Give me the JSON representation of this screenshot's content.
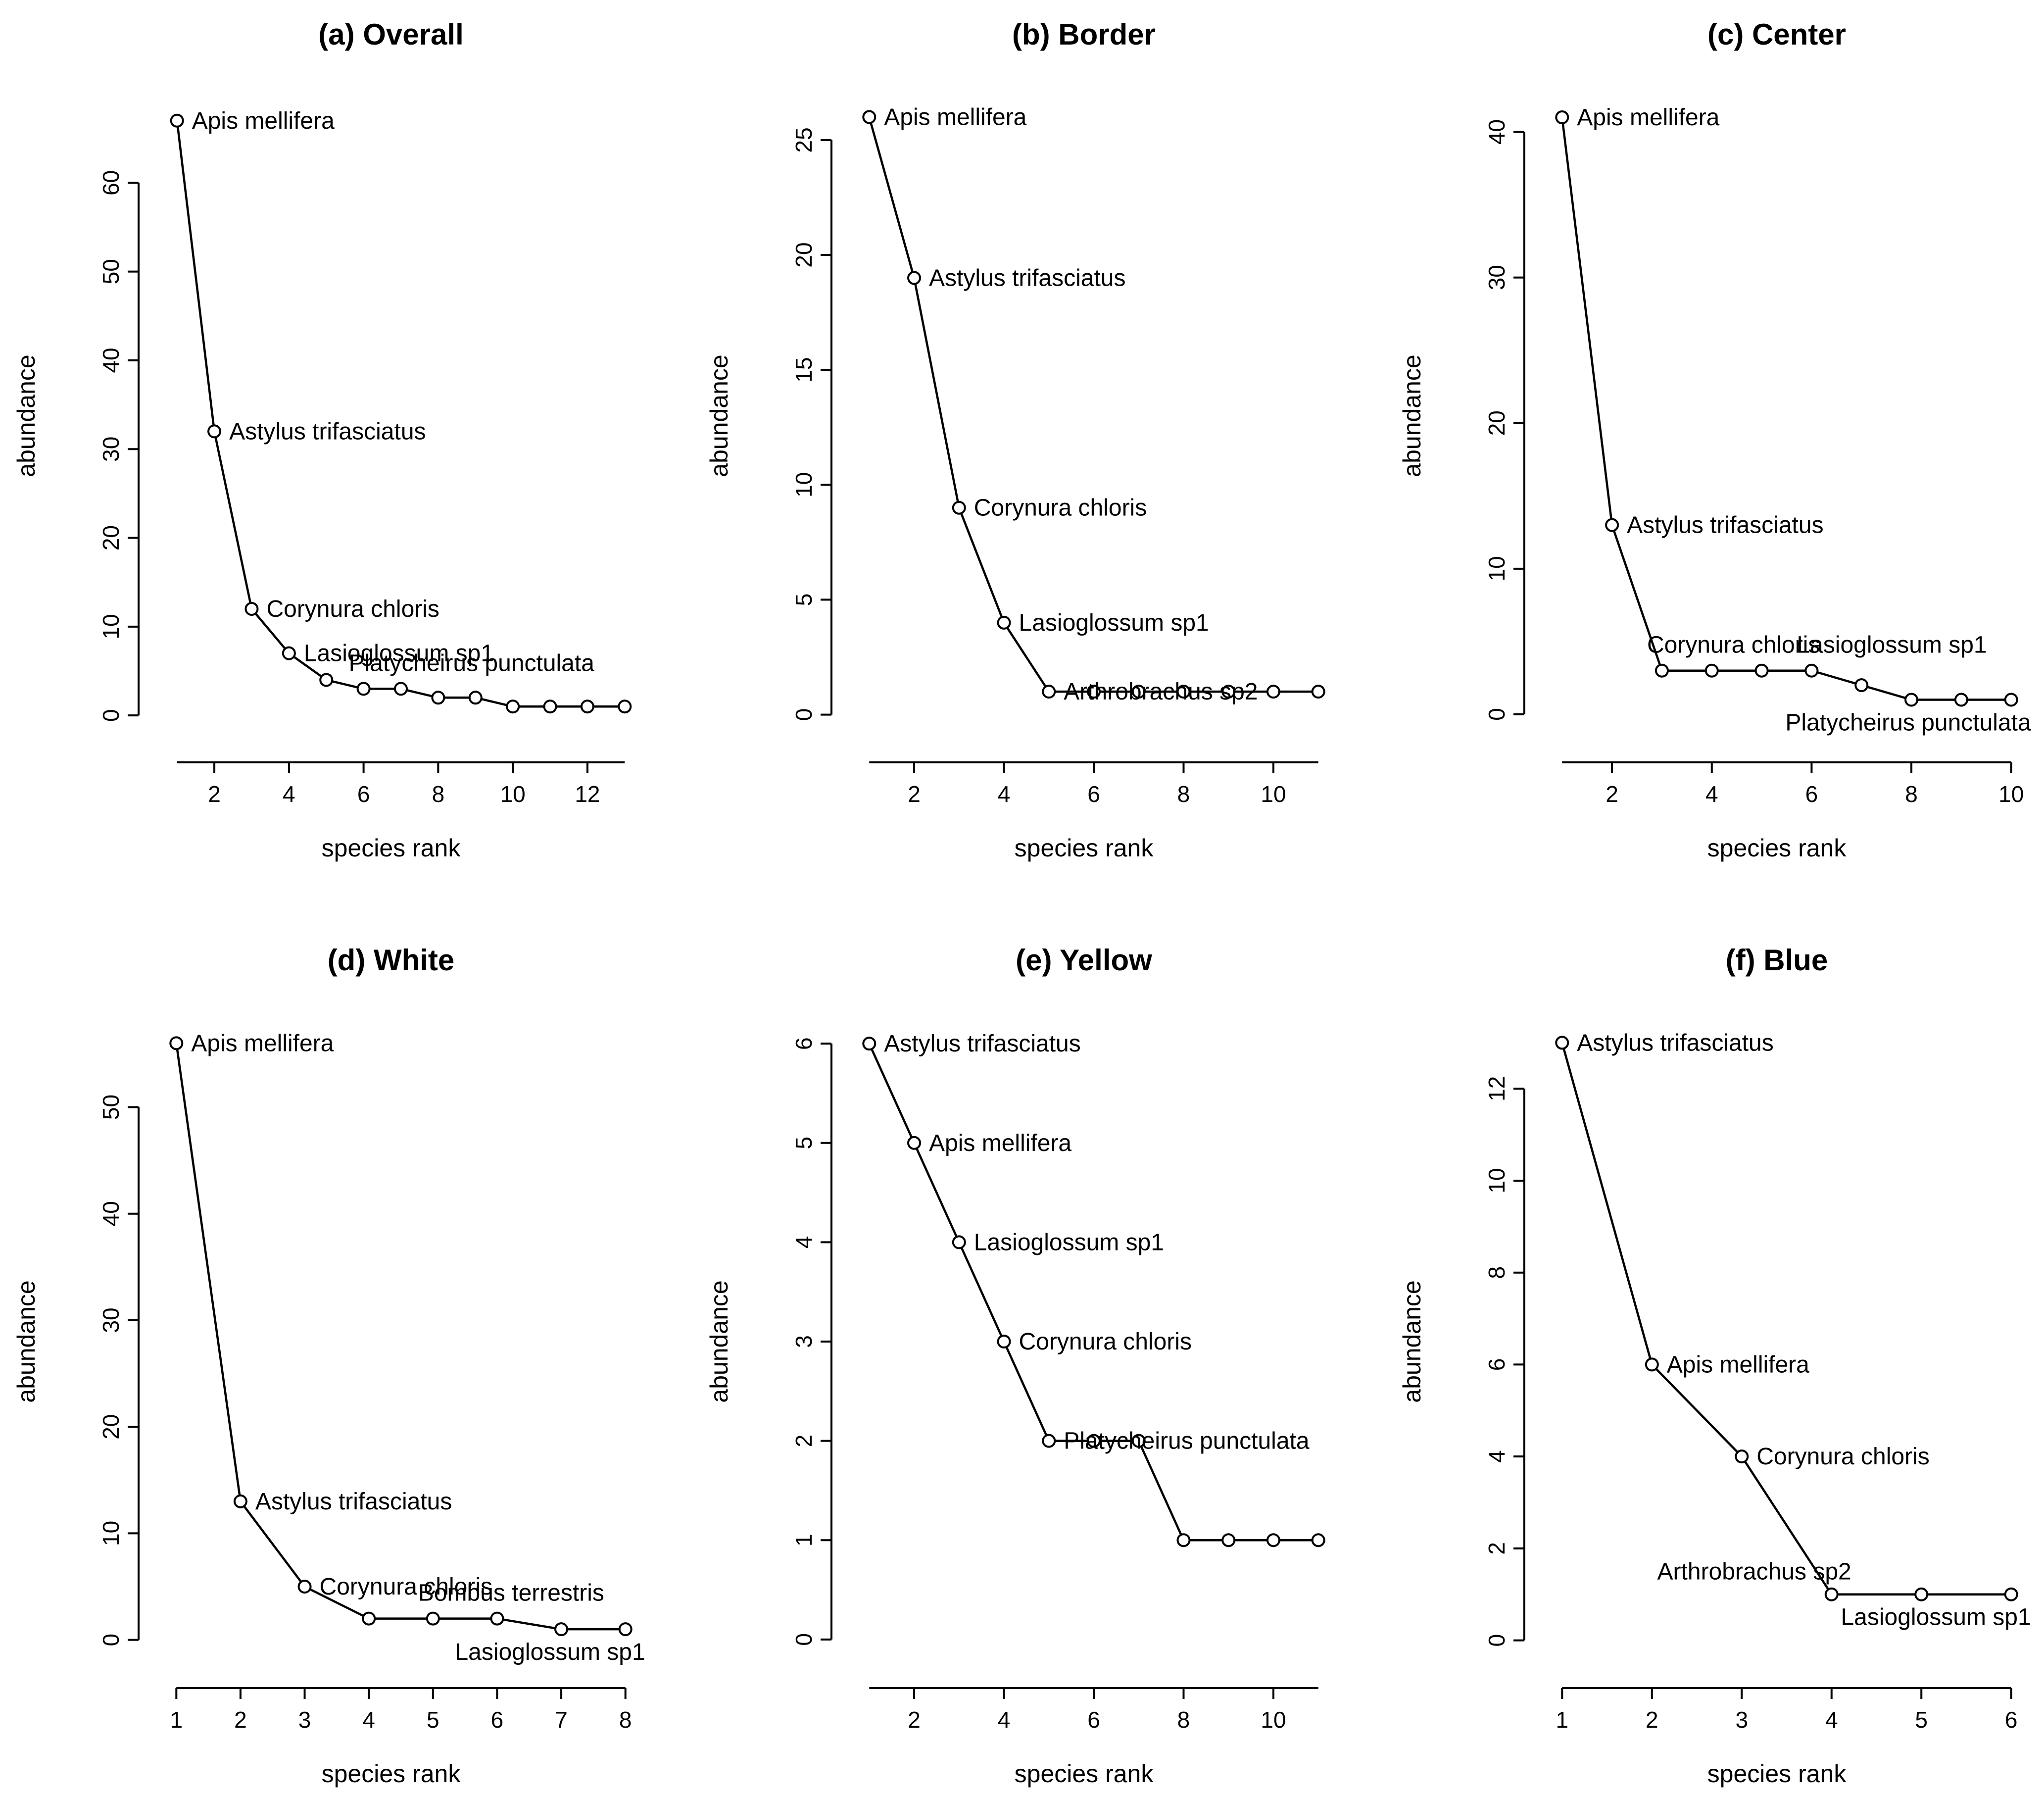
{
  "chart_data": [
    {
      "type": "line",
      "title": "(a) Overall",
      "xlabel": "species rank",
      "ylabel": "abundance",
      "x": [
        1,
        2,
        3,
        4,
        5,
        6,
        7,
        8,
        9,
        10,
        11,
        12,
        13
      ],
      "y": [
        67,
        32,
        12,
        7,
        4,
        3,
        3,
        2,
        2,
        1,
        1,
        1,
        1
      ],
      "xticks": [
        2,
        4,
        6,
        8,
        10,
        12
      ],
      "yticks": [
        0,
        10,
        20,
        30,
        40,
        50,
        60
      ],
      "xlim": [
        0.5,
        13.5
      ],
      "ylim": [
        -2.5,
        70
      ],
      "annotations": [
        {
          "rank": 1,
          "text": "Apis mellifera"
        },
        {
          "rank": 2,
          "text": "Astylus trifasciatus"
        },
        {
          "rank": 3,
          "text": "Corynura chloris"
        },
        {
          "rank": 4,
          "text": "Lasioglossum sp1"
        },
        {
          "rank": 6,
          "text": "Platycheirus punctulata"
        }
      ]
    },
    {
      "type": "line",
      "title": "(b) Border",
      "xlabel": "species rank",
      "ylabel": "abundance",
      "x": [
        1,
        2,
        3,
        4,
        5,
        6,
        7,
        8,
        9,
        10,
        11
      ],
      "y": [
        26,
        19,
        9,
        4,
        1,
        1,
        1,
        1,
        1,
        1,
        1
      ],
      "xticks": [
        2,
        4,
        6,
        8,
        10
      ],
      "yticks": [
        0,
        5,
        10,
        15,
        20,
        25
      ],
      "xlim": [
        0.6,
        11.4
      ],
      "ylim": [
        -1.0,
        27.0
      ],
      "annotations": [
        {
          "rank": 1,
          "text": "Apis mellifera"
        },
        {
          "rank": 2,
          "text": "Astylus trifasciatus"
        },
        {
          "rank": 3,
          "text": "Corynura chloris"
        },
        {
          "rank": 4,
          "text": "Lasioglossum sp1"
        },
        {
          "rank": 5,
          "text": "Arthrobrachus sp2"
        }
      ]
    },
    {
      "type": "line",
      "title": "(c) Center",
      "xlabel": "species rank",
      "ylabel": "abundance",
      "x": [
        1,
        2,
        3,
        4,
        5,
        6,
        7,
        8,
        9,
        10
      ],
      "y": [
        41,
        13,
        3,
        3,
        3,
        3,
        2,
        1,
        1,
        1
      ],
      "xticks": [
        2,
        4,
        6,
        8,
        10
      ],
      "yticks": [
        0,
        10,
        20,
        30,
        40
      ],
      "xlim": [
        0.64,
        10.36
      ],
      "ylim": [
        -1.6,
        42.6
      ],
      "annotations": [
        {
          "rank": 1,
          "text": "Apis mellifera"
        },
        {
          "rank": 2,
          "text": "Astylus trifasciatus"
        },
        {
          "rank": 3,
          "text": "Corynura chloris"
        },
        {
          "rank": 6,
          "text": "Lasioglossum sp1"
        },
        {
          "rank": 10,
          "text": "Platycheirus punctulata"
        }
      ]
    },
    {
      "type": "line",
      "title": "(d) White",
      "xlabel": "species rank",
      "ylabel": "abundance",
      "x": [
        1,
        2,
        3,
        4,
        5,
        6,
        7,
        8
      ],
      "y": [
        56,
        13,
        5,
        2,
        2,
        2,
        1,
        1
      ],
      "xticks": [
        1,
        2,
        3,
        4,
        5,
        6,
        7,
        8
      ],
      "yticks": [
        0,
        10,
        20,
        30,
        40,
        50
      ],
      "xlim": [
        0.72,
        8.28
      ],
      "ylim": [
        -2.2,
        58.2
      ],
      "annotations": [
        {
          "rank": 1,
          "text": "Apis mellifera"
        },
        {
          "rank": 2,
          "text": "Astylus trifasciatus"
        },
        {
          "rank": 3,
          "text": "Corynura chloris"
        },
        {
          "rank": 5,
          "text": "Bombus terrestris"
        },
        {
          "rank": 8,
          "text": "Lasioglossum sp1"
        }
      ]
    },
    {
      "type": "line",
      "title": "(e) Yellow",
      "xlabel": "species rank",
      "ylabel": "abundance",
      "x": [
        1,
        2,
        3,
        4,
        5,
        6,
        7,
        8,
        9,
        10,
        11
      ],
      "y": [
        6,
        5,
        4,
        3,
        2,
        2,
        2,
        1,
        1,
        1,
        1
      ],
      "xticks": [
        2,
        4,
        6,
        8,
        10
      ],
      "yticks": [
        0,
        1,
        2,
        3,
        4,
        5,
        6
      ],
      "xlim": [
        0.6,
        11.4
      ],
      "ylim": [
        -0.24,
        6.24
      ],
      "annotations": [
        {
          "rank": 1,
          "text": "Astylus trifasciatus"
        },
        {
          "rank": 2,
          "text": "Apis mellifera"
        },
        {
          "rank": 3,
          "text": "Lasioglossum sp1"
        },
        {
          "rank": 4,
          "text": "Corynura chloris"
        },
        {
          "rank": 5,
          "text": "Platycheirus punctulata"
        }
      ]
    },
    {
      "type": "line",
      "title": "(f) Blue",
      "xlabel": "species rank",
      "ylabel": "abundance",
      "x": [
        1,
        2,
        3,
        4,
        5,
        6
      ],
      "y": [
        13,
        6,
        4,
        1,
        1,
        1
      ],
      "xticks": [
        1,
        2,
        3,
        4,
        5,
        6
      ],
      "yticks": [
        0,
        2,
        4,
        6,
        8,
        10,
        12
      ],
      "xlim": [
        0.8,
        6.2
      ],
      "ylim": [
        -0.5,
        13.5
      ],
      "annotations": [
        {
          "rank": 1,
          "text": "Astylus trifasciatus"
        },
        {
          "rank": 2,
          "text": "Apis mellifera"
        },
        {
          "rank": 3,
          "text": "Corynura chloris"
        },
        {
          "rank": 4,
          "text": "Arthrobrachus sp2"
        },
        {
          "rank": 6,
          "text": "Lasioglossum sp1"
        }
      ]
    }
  ]
}
